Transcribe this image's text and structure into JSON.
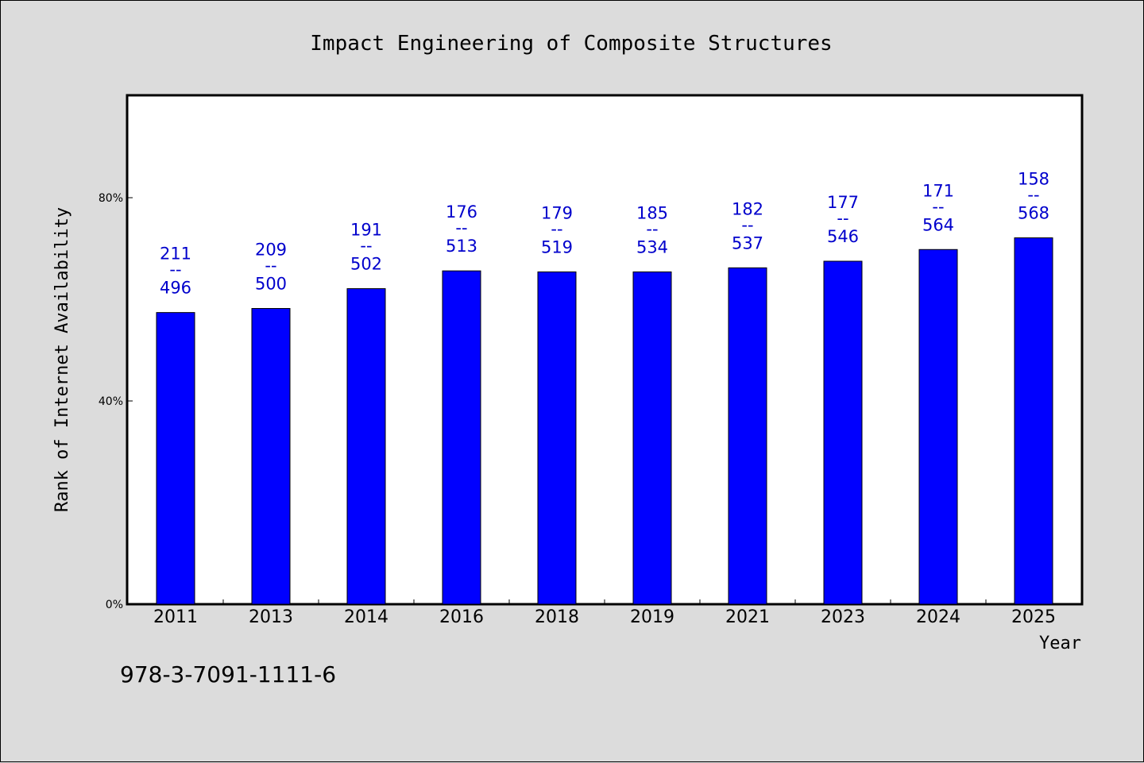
{
  "footer": {
    "code": "978-3-7091-1111-6"
  },
  "chart_data": {
    "type": "bar",
    "title": "Impact Engineering of Composite Structures",
    "xlabel": "Year",
    "ylabel": "Rank of Internet Availability",
    "categories": [
      "2011",
      "2013",
      "2014",
      "2016",
      "2018",
      "2019",
      "2021",
      "2023",
      "2024",
      "2025"
    ],
    "values": [
      57.4,
      58.2,
      62.1,
      65.6,
      65.4,
      65.4,
      66.2,
      67.5,
      69.8,
      72.1
    ],
    "value_unit": "%",
    "ylim": [
      0,
      100
    ],
    "yticks": [
      0,
      40,
      80
    ],
    "ytick_labels": [
      "0%",
      "40%",
      "80%"
    ],
    "bar_labels": [
      {
        "top": "211",
        "sep": "--",
        "bottom": "496"
      },
      {
        "top": "209",
        "sep": "--",
        "bottom": "500"
      },
      {
        "top": "191",
        "sep": "--",
        "bottom": "502"
      },
      {
        "top": "176",
        "sep": "--",
        "bottom": "513"
      },
      {
        "top": "179",
        "sep": "--",
        "bottom": "519"
      },
      {
        "top": "185",
        "sep": "--",
        "bottom": "534"
      },
      {
        "top": "182",
        "sep": "--",
        "bottom": "537"
      },
      {
        "top": "177",
        "sep": "--",
        "bottom": "546"
      },
      {
        "top": "171",
        "sep": "--",
        "bottom": "564"
      },
      {
        "top": "158",
        "sep": "--",
        "bottom": "568"
      }
    ],
    "bar_color": "#0000ff",
    "label_color": "#0000cc",
    "grid": false,
    "legend": "none"
  }
}
